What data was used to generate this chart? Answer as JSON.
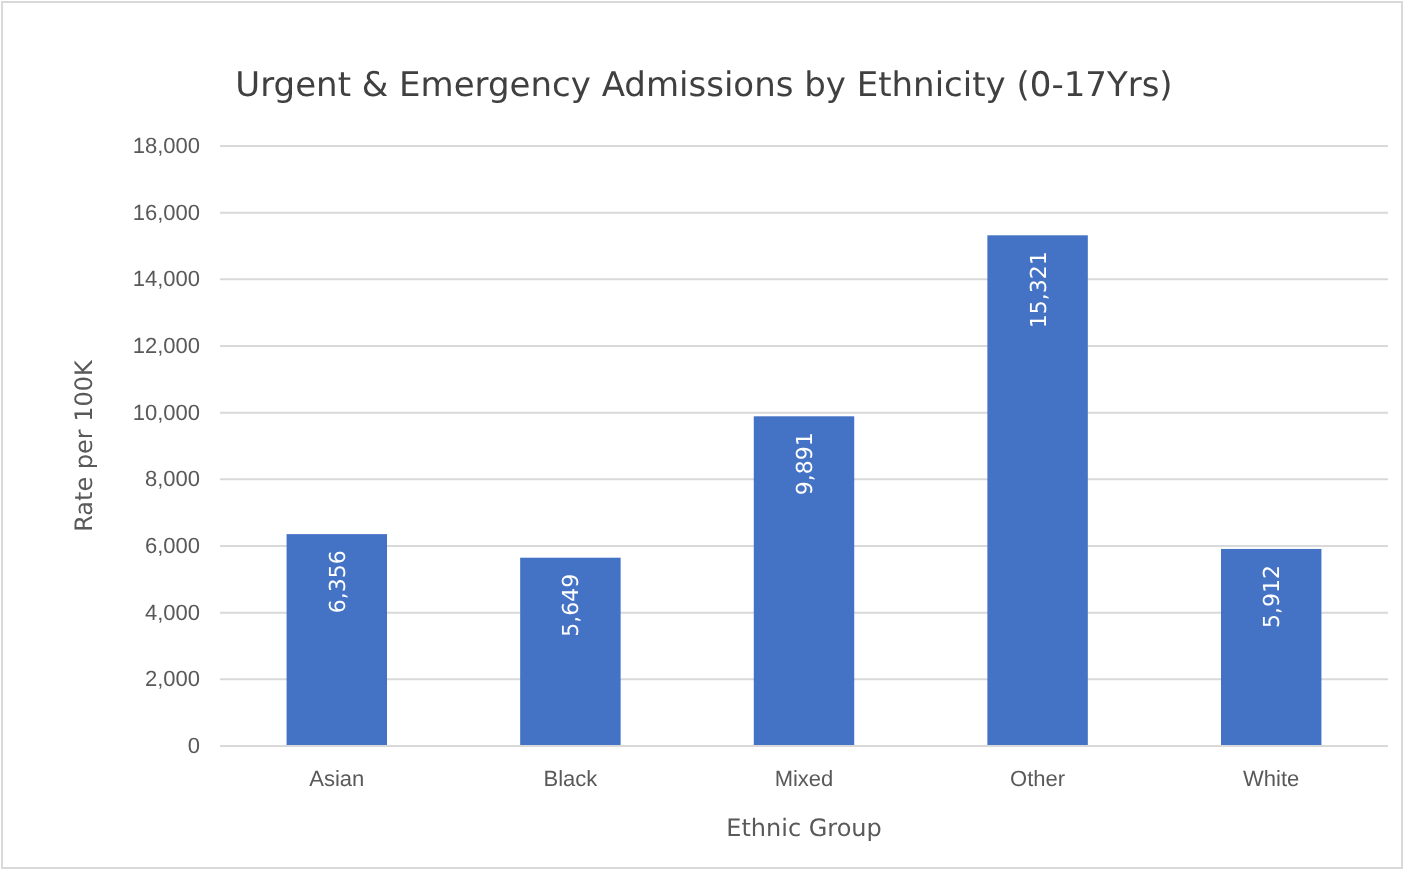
{
  "chart_data": {
    "type": "bar",
    "title": "Urgent & Emergency Admissions by Ethnicity (0-17Yrs)",
    "xlabel": "Ethnic Group",
    "ylabel": "Rate per 100K",
    "categories": [
      "Asian",
      "Black",
      "Mixed",
      "Other",
      "White"
    ],
    "values": [
      6356,
      5649,
      9891,
      15321,
      5912
    ],
    "color": "#4472c4",
    "value_labels": [
      "6,356",
      "5,649",
      "9,891",
      "15,321",
      "5,912"
    ],
    "ylim": [
      0,
      18000
    ],
    "yticks": [
      {
        "value": 0,
        "label": "0"
      },
      {
        "value": 2000,
        "label": "2,000"
      },
      {
        "value": 4000,
        "label": "4,000"
      },
      {
        "value": 6000,
        "label": "6,000"
      },
      {
        "value": 8000,
        "label": "8,000"
      },
      {
        "value": 10000,
        "label": "10,000"
      },
      {
        "value": 12000,
        "label": "12,000"
      },
      {
        "value": 14000,
        "label": "14,000"
      },
      {
        "value": 16000,
        "label": "16,000"
      },
      {
        "value": 18000,
        "label": "18,000"
      }
    ],
    "grid": "y"
  }
}
